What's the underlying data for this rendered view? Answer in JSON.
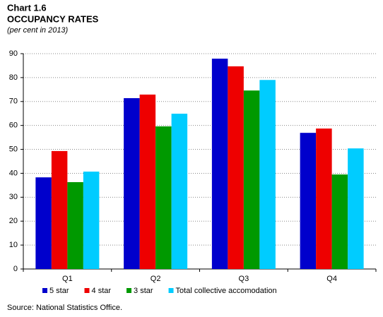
{
  "chart_data": {
    "type": "bar",
    "label": "Chart 1.6",
    "title": "OCCUPANCY RATES",
    "subtitle": "(per cent in 2013)",
    "source": "Source: National Statistics Office.",
    "categories": [
      "Q1",
      "Q2",
      "Q3",
      "Q4"
    ],
    "series": [
      {
        "name": "5 star",
        "color": "#0000cc",
        "values": [
          38.3,
          71.4,
          87.9,
          56.9
        ]
      },
      {
        "name": "4 star",
        "color": "#ee0000",
        "values": [
          49.3,
          72.9,
          84.7,
          58.7
        ]
      },
      {
        "name": "3 star",
        "color": "#009900",
        "values": [
          36.3,
          59.6,
          74.6,
          39.5
        ]
      },
      {
        "name": "Total collective accomodation",
        "color": "#00ccff",
        "values": [
          40.7,
          64.9,
          79.0,
          50.4
        ]
      }
    ],
    "ylim": [
      0,
      90
    ],
    "yticks": [
      0,
      10,
      20,
      30,
      40,
      50,
      60,
      70,
      80,
      90
    ],
    "grid": true
  }
}
